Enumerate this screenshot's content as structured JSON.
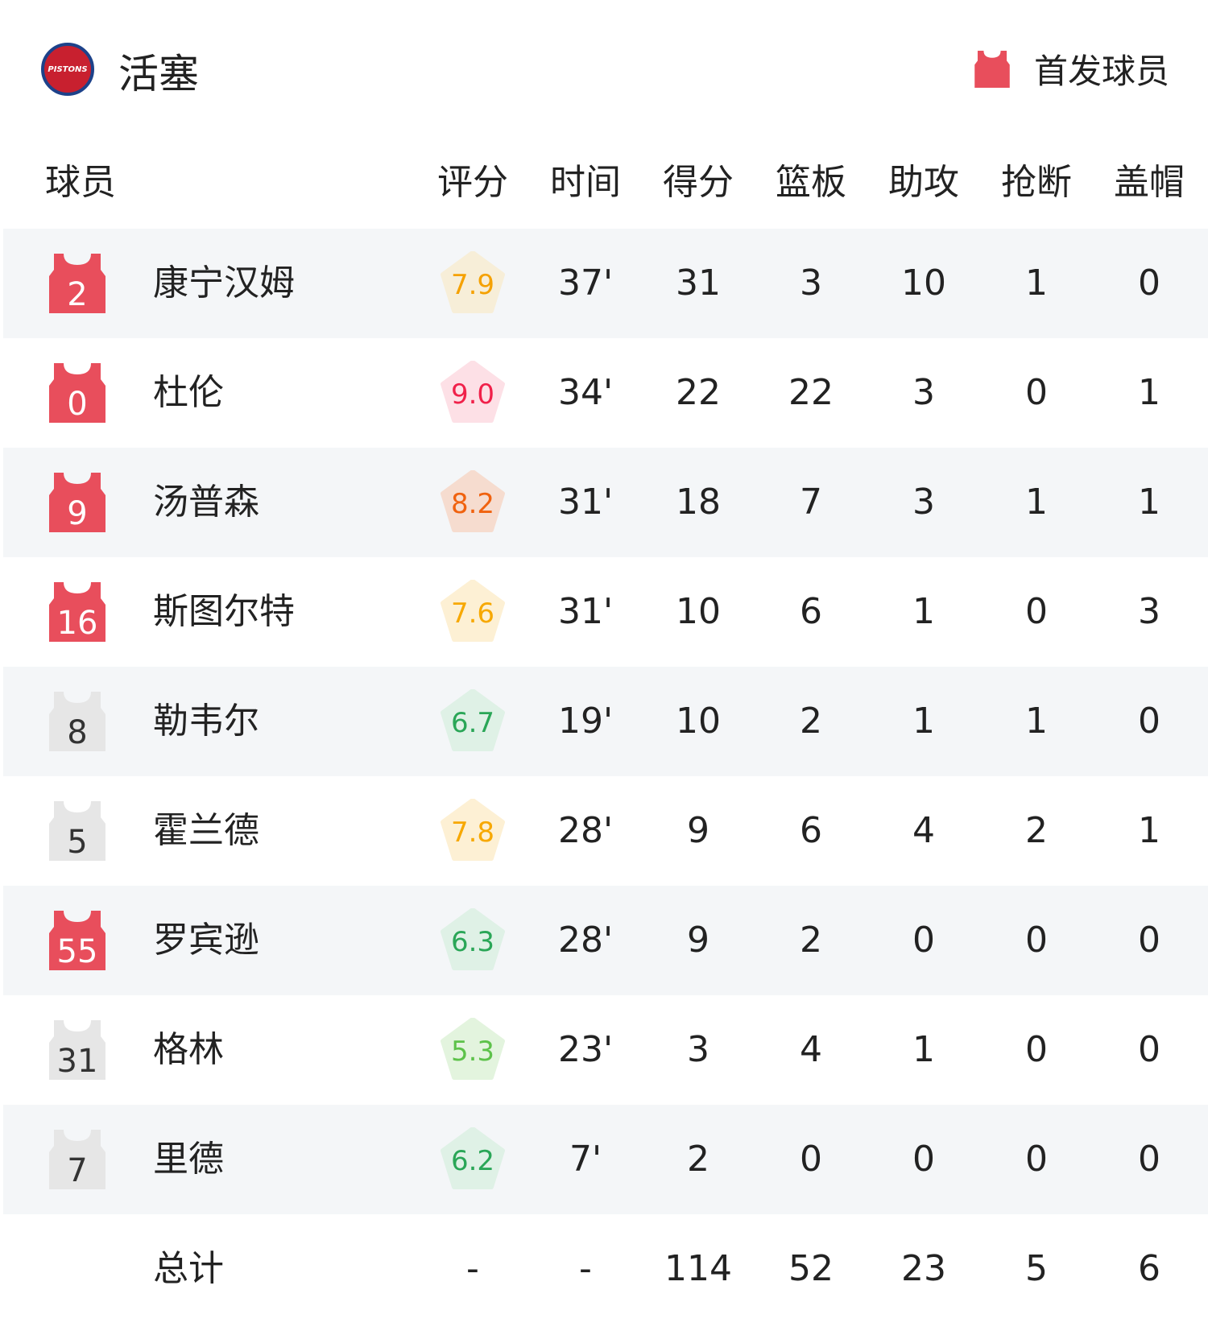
{
  "header": {
    "team": "活塞",
    "logo_text": "PISTONS",
    "legend_label": "首发球员",
    "starter_color": "#e84e5c",
    "bench_color": "#e6e6e6"
  },
  "columns": [
    "球员",
    "评分",
    "时间",
    "得分",
    "篮板",
    "助攻",
    "抢断",
    "盖帽"
  ],
  "players": [
    {
      "number": "2",
      "name": "康宁汉姆",
      "starter": true,
      "rating": "7.9",
      "rating_color": "#f5a100",
      "rating_bg": "#f7eed8",
      "min": "37'",
      "pts": "31",
      "reb": "3",
      "ast": "10",
      "stl": "1",
      "blk": "0"
    },
    {
      "number": "0",
      "name": "杜伦",
      "starter": true,
      "rating": "9.0",
      "rating_color": "#f0214a",
      "rating_bg": "#fde0e6",
      "min": "34'",
      "pts": "22",
      "reb": "22",
      "ast": "3",
      "stl": "0",
      "blk": "1"
    },
    {
      "number": "9",
      "name": "汤普森",
      "starter": true,
      "rating": "8.2",
      "rating_color": "#f0620f",
      "rating_bg": "#f6dccf",
      "min": "31'",
      "pts": "18",
      "reb": "7",
      "ast": "3",
      "stl": "1",
      "blk": "1"
    },
    {
      "number": "16",
      "name": "斯图尔特",
      "starter": true,
      "rating": "7.6",
      "rating_color": "#f7a800",
      "rating_bg": "#fdf0d4",
      "min": "31'",
      "pts": "10",
      "reb": "6",
      "ast": "1",
      "stl": "0",
      "blk": "3"
    },
    {
      "number": "8",
      "name": "勒韦尔",
      "starter": false,
      "rating": "6.7",
      "rating_color": "#2aa657",
      "rating_bg": "#dff1e6",
      "min": "19'",
      "pts": "10",
      "reb": "2",
      "ast": "1",
      "stl": "1",
      "blk": "0"
    },
    {
      "number": "5",
      "name": "霍兰德",
      "starter": false,
      "rating": "7.8",
      "rating_color": "#f7a800",
      "rating_bg": "#fdf0d4",
      "min": "28'",
      "pts": "9",
      "reb": "6",
      "ast": "4",
      "stl": "2",
      "blk": "1"
    },
    {
      "number": "55",
      "name": "罗宾逊",
      "starter": true,
      "rating": "6.3",
      "rating_color": "#2aa657",
      "rating_bg": "#dff1e6",
      "min": "28'",
      "pts": "9",
      "reb": "2",
      "ast": "0",
      "stl": "0",
      "blk": "0"
    },
    {
      "number": "31",
      "name": "格林",
      "starter": false,
      "rating": "5.3",
      "rating_color": "#5dc24a",
      "rating_bg": "#e3f4de",
      "min": "23'",
      "pts": "3",
      "reb": "4",
      "ast": "1",
      "stl": "0",
      "blk": "0"
    },
    {
      "number": "7",
      "name": "里德",
      "starter": false,
      "rating": "6.2",
      "rating_color": "#2aa657",
      "rating_bg": "#dff1e6",
      "min": "7'",
      "pts": "2",
      "reb": "0",
      "ast": "0",
      "stl": "0",
      "blk": "0"
    }
  ],
  "totals": {
    "label": "总计",
    "rating": "-",
    "min": "-",
    "pts": "114",
    "reb": "52",
    "ast": "23",
    "stl": "5",
    "blk": "6"
  }
}
